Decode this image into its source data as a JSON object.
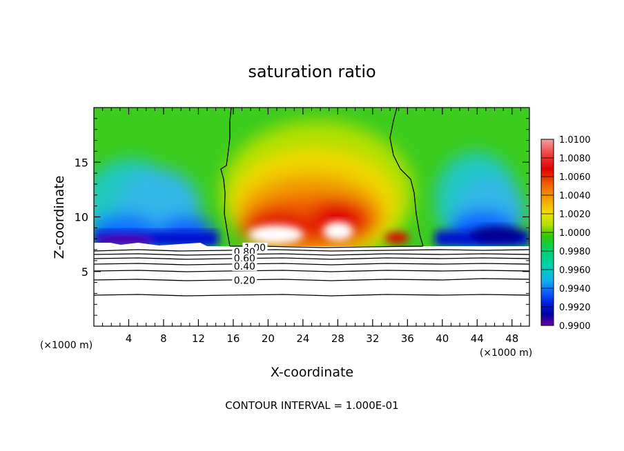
{
  "chart_data": {
    "type": "heatmap",
    "title": "saturation ratio",
    "xlabel": "X-coordinate",
    "ylabel": "Z-coordinate",
    "x_unit_left": "(×1000 m)",
    "x_unit_right": "(×1000 m)",
    "xlim": [
      0,
      50
    ],
    "ylim": [
      0,
      20
    ],
    "x_ticks": [
      4,
      8,
      12,
      16,
      20,
      24,
      28,
      32,
      36,
      40,
      44,
      48
    ],
    "y_ticks": [
      5,
      10,
      15
    ],
    "colorbar": {
      "values": [
        "1.0100",
        "1.0080",
        "1.0060",
        "1.0040",
        "1.0020",
        "1.0000",
        "0.9980",
        "0.9960",
        "0.9940",
        "0.9920",
        "0.9900"
      ],
      "range": [
        0.99,
        1.01
      ],
      "colors": [
        "#f08080",
        "#e00000",
        "#f07000",
        "#f0d000",
        "#b0e000",
        "#30c800",
        "#00d090",
        "#10c0e0",
        "#1060ff",
        "#0000c0",
        "#7000a0"
      ]
    },
    "contour_labels": [
      {
        "text": "1.00",
        "x": 18.5,
        "y": 7.2
      },
      {
        "text": "0.80",
        "x": 17.3,
        "y": 6.8
      },
      {
        "text": "0.60",
        "x": 17.3,
        "y": 6.2
      },
      {
        "text": "0.40",
        "x": 17.3,
        "y": 5.5
      },
      {
        "text": "0.20",
        "x": 17.3,
        "y": 4.2
      }
    ],
    "contour_levels": [
      0.2,
      0.4,
      0.6,
      0.8,
      1.0
    ],
    "contour_interval_text": "CONTOUR INTERVAL = 1.000E-01"
  }
}
